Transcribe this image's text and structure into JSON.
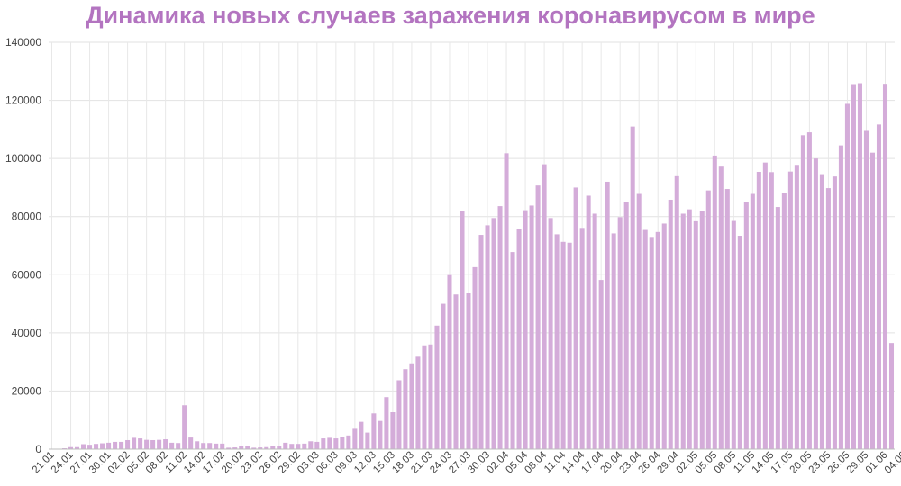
{
  "chart_data": {
    "type": "bar",
    "title": "Динамика новых случаев заражения коронавирусом в мире",
    "xlabel": "",
    "ylabel": "",
    "ylim": [
      0,
      140000
    ],
    "yticks": [
      0,
      20000,
      40000,
      60000,
      80000,
      100000,
      120000,
      140000
    ],
    "ytick_labels": [
      "0",
      "20000",
      "40000",
      "60000",
      "80000",
      "100000",
      "120000",
      "140000"
    ],
    "x_tick_labels": [
      "21.01",
      "24.01",
      "27.01",
      "30.01",
      "02.02",
      "05.02",
      "08.02",
      "11.02",
      "14.02",
      "17.02",
      "20.02",
      "23.02",
      "26.02",
      "29.02",
      "03.03",
      "06.03",
      "09.03",
      "12.03",
      "15.03",
      "18.03",
      "21.03",
      "24.03",
      "27.03",
      "30.03",
      "02.04",
      "05.04",
      "08.04",
      "11.04",
      "14.04",
      "17.04",
      "20.04",
      "23.04",
      "26.04",
      "29.04",
      "02.05",
      "05.05",
      "08.05",
      "11.05",
      "14.05",
      "17.05",
      "20.05",
      "23.05",
      "26.05",
      "29.05",
      "01.06",
      "04.06"
    ],
    "x_tick_every": 3,
    "grid": true,
    "legend": "none",
    "bar_color": "#d4acd9",
    "title_color": "#b374c0",
    "values": [
      0,
      150,
      300,
      700,
      700,
      1700,
      1500,
      1800,
      2000,
      2200,
      2500,
      2500,
      3100,
      3900,
      3700,
      3200,
      3100,
      3200,
      3400,
      2200,
      2100,
      15100,
      4000,
      2700,
      2100,
      2100,
      1900,
      1900,
      500,
      600,
      1000,
      1100,
      500,
      600,
      700,
      1100,
      1200,
      2200,
      1800,
      1800,
      1900,
      2700,
      2500,
      3700,
      3900,
      3700,
      4100,
      4700,
      7000,
      9400,
      5700,
      12300,
      9700,
      17900,
      12700,
      23700,
      27500,
      29500,
      31800,
      35700,
      36000,
      42500,
      50000,
      60200,
      53200,
      82000,
      53800,
      62600,
      73700,
      77000,
      79500,
      83600,
      101800,
      67800,
      75800,
      82200,
      83800,
      90700,
      98000,
      79500,
      73900,
      71300,
      71000,
      90000,
      76100,
      87200,
      81000,
      58200,
      92000,
      74200,
      79800,
      84900,
      111000,
      87800,
      75400,
      73000,
      74700,
      77600,
      85800,
      93900,
      81000,
      82500,
      78400,
      82000,
      89000,
      101000,
      97200,
      89500,
      78500,
      73400,
      85000,
      87800,
      95400,
      98600,
      95300,
      83300,
      88200,
      95500,
      97800,
      108000,
      109000,
      100000,
      94600,
      89800,
      93800,
      104500,
      118800,
      125600,
      125900,
      109500,
      102000,
      111700,
      125700,
      36500
    ]
  }
}
